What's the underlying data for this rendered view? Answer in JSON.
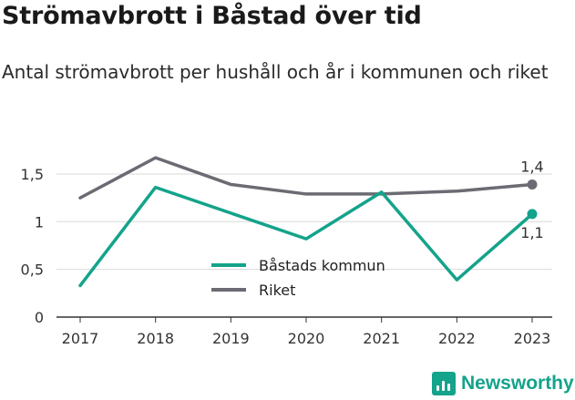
{
  "header": {
    "title": "Strömavbrott i Båstad över tid",
    "subtitle": "Antal strömavbrott per hushåll och år i kommunen och riket"
  },
  "brand": {
    "name": "Newsworthy",
    "icon": "newsworthy-logo-icon",
    "color": "#14a38b"
  },
  "chart_data": {
    "type": "line",
    "categories": [
      "2017",
      "2018",
      "2019",
      "2020",
      "2021",
      "2022",
      "2023"
    ],
    "ylim": [
      0,
      1.7
    ],
    "yticks": [
      {
        "value": 0,
        "label": "0"
      },
      {
        "value": 0.5,
        "label": "0,5"
      },
      {
        "value": 1,
        "label": "1"
      },
      {
        "value": 1.5,
        "label": "1,5"
      }
    ],
    "grid": true,
    "legend_position": "center",
    "series": [
      {
        "name": "Båstads kommun",
        "color": "#14a38b",
        "values": [
          0.33,
          1.36,
          1.09,
          0.82,
          1.31,
          0.39,
          1.08
        ],
        "end_label": "1,1",
        "end_label_position": "below"
      },
      {
        "name": "Riket",
        "color": "#6b6b73",
        "values": [
          1.25,
          1.67,
          1.39,
          1.29,
          1.29,
          1.32,
          1.39
        ],
        "end_label": "1,4",
        "end_label_position": "above"
      }
    ]
  }
}
